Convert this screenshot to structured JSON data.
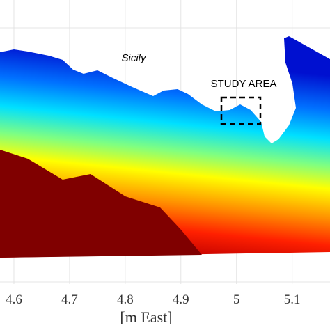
{
  "map": {
    "labels": {
      "island": "Sicily",
      "study_area": "STUDY AREA"
    },
    "x_axis": {
      "label": "[m East]",
      "xlim": [
        4.575,
        5.168
      ],
      "ticks": [
        4.6,
        4.7,
        4.8,
        4.9,
        5,
        5.1
      ]
    }
  }
}
